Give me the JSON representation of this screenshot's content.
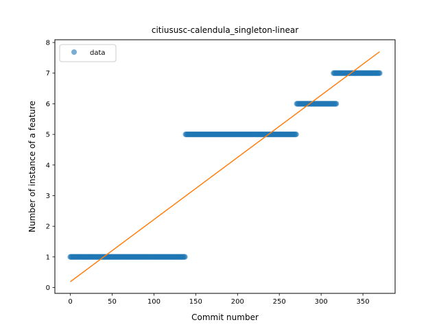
{
  "chart_data": {
    "type": "scatter",
    "title": "citiususc-calendula_singleton-linear",
    "xlabel": "Commit number",
    "ylabel": "Number of instance of a feature",
    "xlim": [
      -18.5,
      388.5
    ],
    "ylim": [
      -0.19,
      8.09
    ],
    "xticks": [
      0,
      50,
      100,
      150,
      200,
      250,
      300,
      350
    ],
    "yticks": [
      0,
      1,
      2,
      3,
      4,
      5,
      6,
      7,
      8
    ],
    "grid": false,
    "legend": {
      "placement": "top-left",
      "entries": [
        "data"
      ]
    },
    "series": [
      {
        "name": "data",
        "kind": "points",
        "color": "#1f77b4",
        "segments": [
          {
            "x_start": 0,
            "x_end": 137,
            "y": 1
          },
          {
            "x_start": 138,
            "x_end": 270,
            "y": 5
          },
          {
            "x_start": 271,
            "x_end": 318,
            "y": 6
          },
          {
            "x_start": 315,
            "x_end": 370,
            "y": 7
          }
        ]
      },
      {
        "kind": "line",
        "color": "#ff7f0e",
        "points": [
          [
            0,
            0.19
          ],
          [
            370,
            7.7
          ]
        ]
      }
    ]
  }
}
